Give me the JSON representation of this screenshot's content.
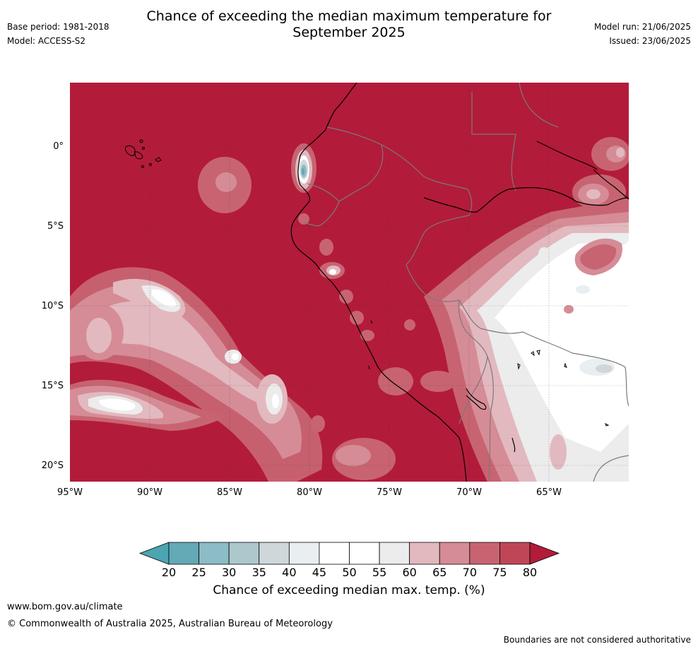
{
  "header": {
    "title_line1": "Chance of exceeding the median maximum temperature for",
    "title_line2": "September 2025",
    "base_period": "Base period: 1981-2018",
    "model": "Model: ACCESS-S2",
    "model_run": "Model run: 21/06/2025",
    "issued": "Issued: 23/06/2025"
  },
  "map": {
    "lat_labels": [
      "0°",
      "5°S",
      "10°S",
      "15°S",
      "20°S"
    ],
    "lon_labels": [
      "95°W",
      "90°W",
      "85°W",
      "80°W",
      "75°W",
      "70°W",
      "65°W"
    ],
    "background_color": "#b31b3a",
    "grid": true,
    "region": "South America west coast (Ecuador, Peru, Bolivia)"
  },
  "colorbar": {
    "ticks": [
      "20",
      "25",
      "30",
      "35",
      "40",
      "45",
      "50",
      "55",
      "60",
      "65",
      "70",
      "75",
      "80"
    ],
    "colors": [
      "#63a9b6",
      "#8cbcc6",
      "#adc8cd",
      "#cfd7da",
      "#e9eef0",
      "#ffffff",
      "#ffffff",
      "#ececec",
      "#e2b9bf",
      "#d58c96",
      "#c86471",
      "#bf4656"
    ],
    "under_color": "#4ba5b3",
    "over_color": "#b31b3a",
    "title": "Chance of exceeding median max. temp. (%)"
  },
  "footer": {
    "url": "www.bom.gov.au/climate",
    "copyright": "© Commonwealth of Australia 2025, Australian Bureau of Meteorology",
    "disclaimer": "Boundaries are not considered authoritative"
  }
}
